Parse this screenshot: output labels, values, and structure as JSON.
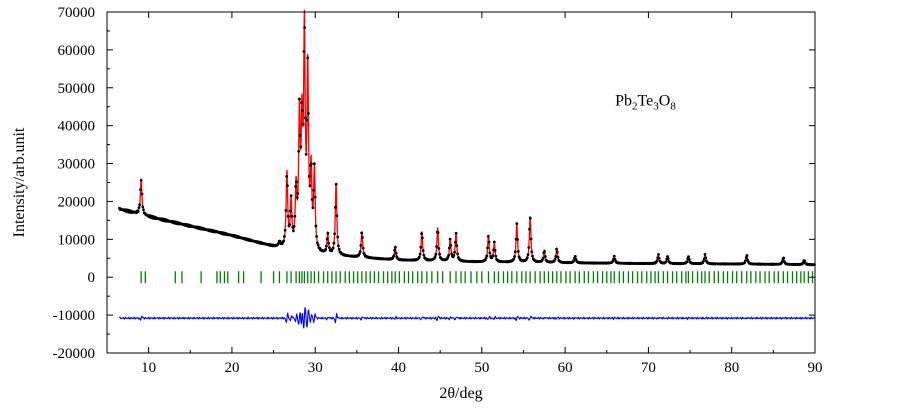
{
  "chart_data": {
    "type": "line",
    "title": "",
    "xlabel": "2θ/deg",
    "ylabel": "Intensity/arb.unit",
    "xlim": [
      5,
      90
    ],
    "ylim": [
      -20000,
      70000
    ],
    "xticks": [
      10,
      20,
      30,
      40,
      50,
      60,
      70,
      80,
      90
    ],
    "yticks": [
      -20000,
      -10000,
      0,
      10000,
      20000,
      30000,
      40000,
      50000,
      60000,
      70000
    ],
    "grid": false,
    "legend": "none",
    "annotation": {
      "base": "Pb",
      "sub1": "2",
      "mid": "Te",
      "sub2": "3",
      "end": "O",
      "sub3": "8"
    },
    "colors": {
      "observed": "#000000",
      "calculated": "#ff0000",
      "difference": "#0000ff",
      "bragg": "#008000"
    },
    "background": {
      "x": [
        6.5,
        10,
        20,
        25,
        30,
        40,
        50,
        60,
        70,
        80,
        90
      ],
      "y": [
        18000,
        16000,
        11000,
        8000,
        6000,
        4500,
        4000,
        3800,
        3600,
        3500,
        3300
      ]
    },
    "peaks": [
      {
        "x": 9.1,
        "y": 26000
      },
      {
        "x": 18.2,
        "y": 12000
      },
      {
        "x": 20.8,
        "y": 10000
      },
      {
        "x": 23.5,
        "y": 8000
      },
      {
        "x": 25.7,
        "y": 9000
      },
      {
        "x": 26.6,
        "y": 27000
      },
      {
        "x": 27.1,
        "y": 19000
      },
      {
        "x": 27.7,
        "y": 22000
      },
      {
        "x": 28.1,
        "y": 40000
      },
      {
        "x": 28.4,
        "y": 36000
      },
      {
        "x": 28.7,
        "y": 62000
      },
      {
        "x": 29.1,
        "y": 52000
      },
      {
        "x": 29.5,
        "y": 26000
      },
      {
        "x": 29.9,
        "y": 27000
      },
      {
        "x": 31.5,
        "y": 11000
      },
      {
        "x": 32.5,
        "y": 24500
      },
      {
        "x": 35.6,
        "y": 12000
      },
      {
        "x": 39.6,
        "y": 8000
      },
      {
        "x": 42.8,
        "y": 12000
      },
      {
        "x": 44.7,
        "y": 13000
      },
      {
        "x": 46.2,
        "y": 10000
      },
      {
        "x": 46.9,
        "y": 11500
      },
      {
        "x": 50.8,
        "y": 11000
      },
      {
        "x": 51.5,
        "y": 9000
      },
      {
        "x": 54.2,
        "y": 14000
      },
      {
        "x": 55.8,
        "y": 16000
      },
      {
        "x": 57.5,
        "y": 7000
      },
      {
        "x": 59.0,
        "y": 7500
      },
      {
        "x": 61.2,
        "y": 5500
      },
      {
        "x": 65.9,
        "y": 5500
      },
      {
        "x": 71.2,
        "y": 6000
      },
      {
        "x": 72.3,
        "y": 5500
      },
      {
        "x": 74.8,
        "y": 5500
      },
      {
        "x": 76.8,
        "y": 6000
      },
      {
        "x": 81.8,
        "y": 5800
      },
      {
        "x": 86.2,
        "y": 5200
      },
      {
        "x": 88.7,
        "y": 4500
      }
    ],
    "difference_baseline": -10800,
    "bragg_level": 0,
    "bragg_positions": [
      9.1,
      9.6,
      13.2,
      14.0,
      16.3,
      18.2,
      18.6,
      19.1,
      19.5,
      20.8,
      21.4,
      23.5,
      25.0,
      25.7,
      26.6,
      27.1,
      27.7,
      28.1,
      28.4,
      28.7,
      29.1,
      29.5,
      29.9,
      30.4,
      31.0,
      31.5,
      32.0,
      32.5,
      33.0,
      33.6,
      34.1,
      34.6,
      35.1,
      35.6,
      36.1,
      36.6,
      37.1,
      37.6,
      38.2,
      38.7,
      39.2,
      39.6,
      40.1,
      40.7,
      41.2,
      41.7,
      42.3,
      42.8,
      43.4,
      44.0,
      44.7,
      45.3,
      46.2,
      46.9,
      47.5,
      48.0,
      48.7,
      49.4,
      50.0,
      50.8,
      51.5,
      52.0,
      52.6,
      53.1,
      53.6,
      54.2,
      54.8,
      55.3,
      55.8,
      56.4,
      57.0,
      57.5,
      58.0,
      58.5,
      59.0,
      59.5,
      60.1,
      60.6,
      61.2,
      61.7,
      62.3,
      62.8,
      63.4,
      63.9,
      64.5,
      65.0,
      65.5,
      65.9,
      66.5,
      67.0,
      67.6,
      68.1,
      68.7,
      69.2,
      69.8,
      70.3,
      70.8,
      71.2,
      71.8,
      72.3,
      72.9,
      73.4,
      74.0,
      74.5,
      74.8,
      75.3,
      75.9,
      76.4,
      76.8,
      77.3,
      77.9,
      78.4,
      79.0,
      79.5,
      80.1,
      80.6,
      81.2,
      81.8,
      82.3,
      82.9,
      83.4,
      84.0,
      84.5,
      85.1,
      85.6,
      86.2,
      86.7,
      87.3,
      87.8,
      88.3,
      88.7,
      89.2,
      89.7
    ]
  }
}
